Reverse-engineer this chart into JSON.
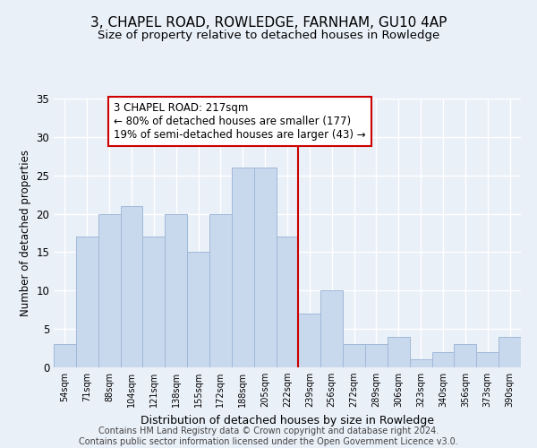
{
  "title": "3, CHAPEL ROAD, ROWLEDGE, FARNHAM, GU10 4AP",
  "subtitle": "Size of property relative to detached houses in Rowledge",
  "xlabel": "Distribution of detached houses by size in Rowledge",
  "ylabel": "Number of detached properties",
  "categories": [
    "54sqm",
    "71sqm",
    "88sqm",
    "104sqm",
    "121sqm",
    "138sqm",
    "155sqm",
    "172sqm",
    "188sqm",
    "205sqm",
    "222sqm",
    "239sqm",
    "256sqm",
    "272sqm",
    "289sqm",
    "306sqm",
    "323sqm",
    "340sqm",
    "356sqm",
    "373sqm",
    "390sqm"
  ],
  "values": [
    3,
    17,
    20,
    21,
    17,
    20,
    15,
    20,
    26,
    26,
    17,
    7,
    10,
    3,
    3,
    4,
    1,
    2,
    3,
    2,
    4
  ],
  "bar_color": "#c9d9ed",
  "bar_edge_color": "#a0b8d8",
  "vline_x": 10.5,
  "vline_color": "#cc0000",
  "annotation_text": "3 CHAPEL ROAD: 217sqm\n← 80% of detached houses are smaller (177)\n19% of semi-detached houses are larger (43) →",
  "annotation_box_color": "#ffffff",
  "annotation_box_edge": "#cc0000",
  "ylim": [
    0,
    35
  ],
  "yticks": [
    0,
    5,
    10,
    15,
    20,
    25,
    30,
    35
  ],
  "background_color": "#eaf0f8",
  "grid_color": "#ffffff",
  "footer_line1": "Contains HM Land Registry data © Crown copyright and database right 2024.",
  "footer_line2": "Contains public sector information licensed under the Open Government Licence v3.0.",
  "title_fontsize": 11,
  "subtitle_fontsize": 9.5,
  "annotation_fontsize": 8.5,
  "footer_fontsize": 7,
  "ylabel_fontsize": 8.5,
  "xlabel_fontsize": 9,
  "ytick_fontsize": 8.5,
  "xtick_fontsize": 7
}
